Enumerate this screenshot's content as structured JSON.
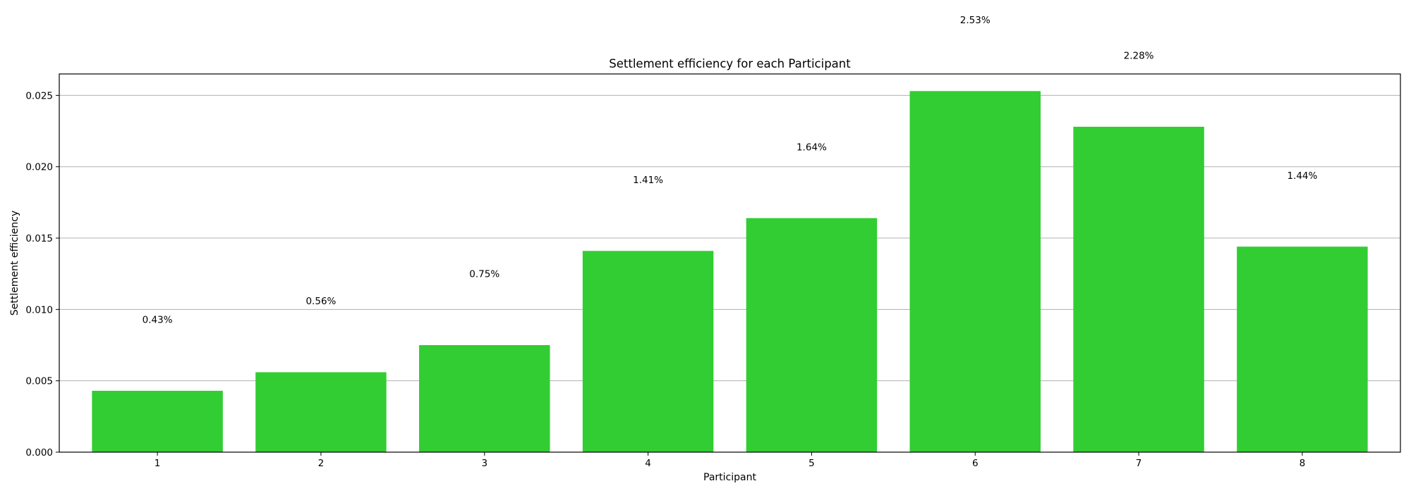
{
  "chart_data": {
    "type": "bar",
    "title": "Settlement efficiency for each Participant",
    "xlabel": "Participant",
    "ylabel": "Settlement efficiency",
    "categories": [
      "1",
      "2",
      "3",
      "4",
      "5",
      "6",
      "7",
      "8"
    ],
    "values": [
      0.0043,
      0.0056,
      0.0075,
      0.0141,
      0.0164,
      0.0253,
      0.0228,
      0.0144
    ],
    "data_labels": [
      "0.43%",
      "0.56%",
      "0.75%",
      "1.41%",
      "1.64%",
      "2.53%",
      "2.28%",
      "1.44%"
    ],
    "label_offset": 0.005,
    "ylim": [
      0,
      0.0265
    ],
    "yticks": [
      0.0,
      0.005,
      0.01,
      0.015,
      0.02,
      0.025
    ],
    "ytick_labels": [
      "0.000",
      "0.005",
      "0.010",
      "0.015",
      "0.020",
      "0.025"
    ],
    "grid": "y",
    "bar_color": "#32cd32",
    "grid_color": "#b0b0b0"
  }
}
